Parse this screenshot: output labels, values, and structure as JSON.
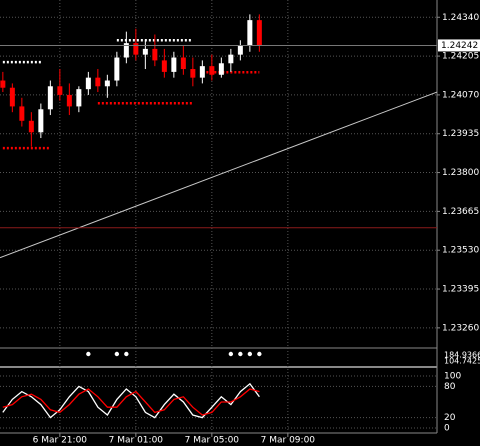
{
  "chart_data": [
    {
      "type": "candlestick",
      "categories": [
        null,
        null,
        null,
        null,
        null,
        null,
        null,
        null,
        null,
        null,
        null,
        null,
        null,
        null,
        null,
        null,
        null,
        null,
        null,
        null,
        null,
        null,
        null,
        null,
        null,
        null,
        null,
        null
      ],
      "open": [
        1.2412,
        1.24095,
        1.2403,
        1.2398,
        1.2394,
        1.2402,
        1.241,
        1.2407,
        1.2403,
        1.2409,
        1.2413,
        1.241,
        1.2412,
        1.242,
        1.2425,
        1.2421,
        1.2423,
        1.2419,
        1.2415,
        1.242,
        1.2416,
        1.2413,
        1.2417,
        1.2414,
        1.2418,
        1.2421,
        1.2424,
        1.2433
      ],
      "high": [
        1.2415,
        1.2411,
        1.2406,
        1.2401,
        1.2404,
        1.2412,
        1.2416,
        1.2411,
        1.241,
        1.2415,
        1.2416,
        1.2414,
        1.2422,
        1.2429,
        1.243,
        1.2426,
        1.2428,
        1.2423,
        1.2422,
        1.2424,
        1.242,
        1.2419,
        1.2421,
        1.242,
        1.2423,
        1.2426,
        1.2435,
        1.2435
      ],
      "low": [
        1.2408,
        1.2401,
        1.2396,
        1.2389,
        1.2392,
        1.24,
        1.2405,
        1.24,
        1.2401,
        1.2407,
        1.2408,
        1.2406,
        1.241,
        1.2418,
        1.2419,
        1.2416,
        1.2417,
        1.2413,
        1.2413,
        1.2414,
        1.241,
        1.2411,
        1.2412,
        1.2413,
        1.2415,
        1.2419,
        1.2422,
        1.2422
      ],
      "close": [
        1.24095,
        1.2403,
        1.2398,
        1.2394,
        1.2402,
        1.241,
        1.2407,
        1.2403,
        1.2409,
        1.2413,
        1.241,
        1.2412,
        1.242,
        1.2425,
        1.2421,
        1.2423,
        1.2419,
        1.2415,
        1.242,
        1.2416,
        1.2413,
        1.2417,
        1.2414,
        1.2418,
        1.2421,
        1.2424,
        1.2433,
        1.24242
      ],
      "up_color": "#ffffff",
      "down_color": "#ff0000",
      "xlim": [
        -0.3,
        45.7
      ],
      "xticks": [
        {
          "value": 6,
          "label": "6 Mar 21:00"
        },
        {
          "value": 14,
          "label": "7 Mar 01:00"
        },
        {
          "value": 22,
          "label": "7 Mar 05:00"
        },
        {
          "value": 30,
          "label": "7 Mar 09:00"
        }
      ],
      "ylim": [
        1.2319,
        1.244
      ],
      "yticks": [
        {
          "value": 1.2434,
          "label": "1.24340"
        },
        {
          "value": 1.24205,
          "label": "1.24205"
        },
        {
          "value": 1.2407,
          "label": "1.24070"
        },
        {
          "value": 1.23935,
          "label": "1.23935"
        },
        {
          "value": 1.238,
          "label": "1.23800"
        },
        {
          "value": 1.23665,
          "label": "1.23665"
        },
        {
          "value": 1.2353,
          "label": "1.23530"
        },
        {
          "value": 1.23395,
          "label": "1.23395"
        },
        {
          "value": 1.2326,
          "label": "1.23260"
        }
      ],
      "current_price": {
        "value": 1.24242,
        "label": "1.24242"
      },
      "trendline": {
        "x": [
          -0.3,
          45.7
        ],
        "y": [
          1.23504,
          1.2408
        ],
        "color": "#c8c8c8"
      },
      "hline": {
        "value": 1.23608,
        "color": "#8b1a1a"
      },
      "levels": [
        {
          "from": 0,
          "to": 4,
          "value": 1.24184,
          "color": "#ffffff"
        },
        {
          "from": 12,
          "to": 20,
          "value": 1.2426,
          "color": "#ffffff"
        },
        {
          "from": 0,
          "to": 5,
          "value": 1.23885,
          "color": "#ff0000"
        },
        {
          "from": 10,
          "to": 20,
          "value": 1.24041,
          "color": "#ff0000"
        },
        {
          "from": 21,
          "to": 27,
          "value": 1.24149,
          "color": "#ff0000"
        }
      ],
      "grid": true
    },
    {
      "type": "dots",
      "labels": [
        "184.9366",
        "104.7425"
      ],
      "x": [
        9,
        12,
        13,
        24,
        25,
        26,
        27
      ],
      "color": "#ffffff"
    },
    {
      "type": "line",
      "ylim": [
        0,
        100
      ],
      "yticks": [
        100,
        80,
        20,
        0
      ],
      "series": [
        {
          "color": "#ffffff",
          "values": [
            30,
            55,
            70,
            60,
            45,
            20,
            35,
            60,
            80,
            70,
            40,
            25,
            55,
            75,
            60,
            30,
            20,
            45,
            65,
            50,
            25,
            20,
            40,
            60,
            45,
            70,
            85,
            60
          ]
        },
        {
          "color": "#ff0000",
          "values": [
            40,
            45,
            60,
            65,
            55,
            35,
            30,
            45,
            65,
            75,
            60,
            40,
            40,
            60,
            70,
            50,
            30,
            35,
            55,
            60,
            40,
            25,
            30,
            50,
            50,
            60,
            75,
            70
          ]
        }
      ]
    }
  ]
}
